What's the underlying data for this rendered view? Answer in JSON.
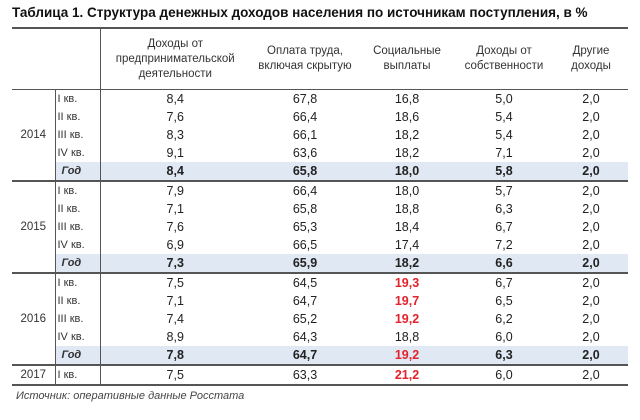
{
  "title": "Таблица 1. Структура денежных доходов населения по источникам поступления, в %",
  "columns": [
    "Доходы от предпринимательской деятельности",
    "Оплата труда, включая скрытую",
    "Социальные выплаты",
    "Доходы от собственности",
    "Другие доходы"
  ],
  "highlight_color": "#e3222b",
  "total_row_color": "#dfe8f3",
  "groups": [
    {
      "year": "2014",
      "rows": [
        {
          "q": "I кв.",
          "values": [
            "8,4",
            "67,8",
            "16,8",
            "5,0",
            "2,0"
          ],
          "red": []
        },
        {
          "q": "II кв.",
          "values": [
            "7,6",
            "66,4",
            "18,6",
            "5,4",
            "2,0"
          ],
          "red": []
        },
        {
          "q": "III кв.",
          "values": [
            "8,3",
            "66,1",
            "18,2",
            "5,4",
            "2,0"
          ],
          "red": []
        },
        {
          "q": "IV кв.",
          "values": [
            "9,1",
            "63,6",
            "18,2",
            "7,1",
            "2,0"
          ],
          "red": []
        },
        {
          "q": "Год",
          "total": true,
          "values": [
            "8,4",
            "65,8",
            "18,0",
            "5,8",
            "2,0"
          ],
          "red": []
        }
      ]
    },
    {
      "year": "2015",
      "rows": [
        {
          "q": "I кв.",
          "values": [
            "7,9",
            "66,4",
            "18,0",
            "5,7",
            "2,0"
          ],
          "red": []
        },
        {
          "q": "II кв.",
          "values": [
            "7,1",
            "65,8",
            "18,8",
            "6,3",
            "2,0"
          ],
          "red": []
        },
        {
          "q": "III кв.",
          "values": [
            "7,6",
            "65,3",
            "18,4",
            "6,7",
            "2,0"
          ],
          "red": []
        },
        {
          "q": "IV кв.",
          "values": [
            "6,9",
            "66,5",
            "17,4",
            "7,2",
            "2,0"
          ],
          "red": []
        },
        {
          "q": "Год",
          "total": true,
          "values": [
            "7,3",
            "65,9",
            "18,2",
            "6,6",
            "2,0"
          ],
          "red": []
        }
      ]
    },
    {
      "year": "2016",
      "rows": [
        {
          "q": "I кв.",
          "values": [
            "7,5",
            "64,5",
            "19,3",
            "6,7",
            "2,0"
          ],
          "red": [
            2
          ]
        },
        {
          "q": "II кв.",
          "values": [
            "7,1",
            "64,7",
            "19,7",
            "6,5",
            "2,0"
          ],
          "red": [
            2
          ]
        },
        {
          "q": "III кв.",
          "values": [
            "7,4",
            "65,2",
            "19,2",
            "6,2",
            "2,0"
          ],
          "red": [
            2
          ]
        },
        {
          "q": "IV кв.",
          "values": [
            "8,9",
            "64,3",
            "18,8",
            "6,0",
            "2,0"
          ],
          "red": []
        },
        {
          "q": "Год",
          "total": true,
          "values": [
            "7,8",
            "64,7",
            "19,2",
            "6,3",
            "2,0"
          ],
          "red": [
            2
          ]
        }
      ]
    },
    {
      "year": "2017",
      "rows": [
        {
          "q": "I кв.",
          "values": [
            "7,5",
            "63,3",
            "21,2",
            "6,0",
            "2,0"
          ],
          "red": [
            2
          ]
        }
      ]
    }
  ],
  "source": "Источник: оперативные данные Росстата"
}
